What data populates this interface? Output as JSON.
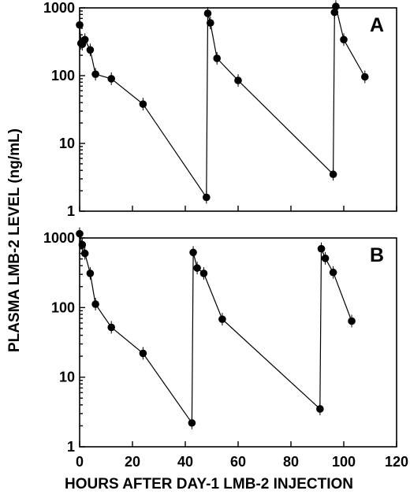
{
  "figure": {
    "ylabel": "PLASMA LMB-2 LEVEL (ng/mL)",
    "xlabel": "HOURS AFTER DAY-1 LMB-2 INJECTION"
  },
  "chart_data": [
    {
      "type": "line",
      "panel_label": "A",
      "yscale": "log",
      "ylim": [
        1,
        1000
      ],
      "xlim": [
        0,
        120
      ],
      "yticks": [
        "1",
        "10",
        "100",
        "1000"
      ],
      "xticks": [],
      "grid": false,
      "series": [
        {
          "points": [
            {
              "x": 0,
              "y": 560
            },
            {
              "x": 0.5,
              "y": 300
            },
            {
              "x": 1,
              "y": 290
            },
            {
              "x": 2,
              "y": 340
            },
            {
              "x": 4,
              "y": 240
            },
            {
              "x": 6,
              "y": 105
            },
            {
              "x": 12,
              "y": 90
            },
            {
              "x": 24,
              "y": 38
            },
            {
              "x": 48,
              "y": 1.6
            },
            {
              "x": 48.5,
              "y": 830
            },
            {
              "x": 49.5,
              "y": 600
            },
            {
              "x": 52,
              "y": 180
            },
            {
              "x": 60,
              "y": 85
            },
            {
              "x": 96,
              "y": 3.5
            },
            {
              "x": 96.5,
              "y": 860
            },
            {
              "x": 97,
              "y": 1050
            },
            {
              "x": 100,
              "y": 340
            },
            {
              "x": 108,
              "y": 96
            }
          ]
        }
      ]
    },
    {
      "type": "line",
      "panel_label": "B",
      "yscale": "log",
      "ylim": [
        1,
        1000
      ],
      "xlim": [
        0,
        120
      ],
      "yticks": [
        "1",
        "10",
        "100",
        "1000"
      ],
      "xticks": [
        "0",
        "20",
        "40",
        "60",
        "80",
        "100",
        "120"
      ],
      "grid": false,
      "series": [
        {
          "points": [
            {
              "x": 0,
              "y": 1150
            },
            {
              "x": 1,
              "y": 800
            },
            {
              "x": 2,
              "y": 600
            },
            {
              "x": 4,
              "y": 310
            },
            {
              "x": 6,
              "y": 112
            },
            {
              "x": 12,
              "y": 52
            },
            {
              "x": 24,
              "y": 22
            },
            {
              "x": 42.5,
              "y": 2.2
            },
            {
              "x": 43,
              "y": 620
            },
            {
              "x": 44.5,
              "y": 370
            },
            {
              "x": 47,
              "y": 310
            },
            {
              "x": 54,
              "y": 68
            },
            {
              "x": 91,
              "y": 3.5
            },
            {
              "x": 91.5,
              "y": 700
            },
            {
              "x": 93,
              "y": 510
            },
            {
              "x": 96,
              "y": 320
            },
            {
              "x": 103,
              "y": 64
            }
          ]
        }
      ]
    }
  ]
}
